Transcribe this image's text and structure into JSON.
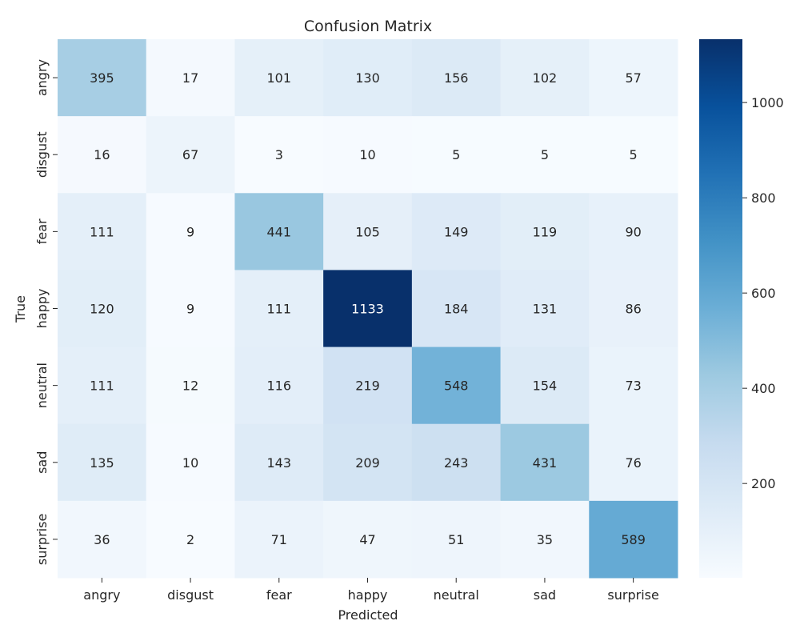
{
  "chart_data": {
    "type": "heatmap",
    "title": "Confusion Matrix",
    "xlabel": "Predicted",
    "ylabel": "True",
    "x_categories": [
      "angry",
      "disgust",
      "fear",
      "happy",
      "neutral",
      "sad",
      "surprise"
    ],
    "y_categories": [
      "angry",
      "disgust",
      "fear",
      "happy",
      "neutral",
      "sad",
      "surprise"
    ],
    "values": [
      [
        395,
        17,
        101,
        130,
        156,
        102,
        57
      ],
      [
        16,
        67,
        3,
        10,
        5,
        5,
        5
      ],
      [
        111,
        9,
        441,
        105,
        149,
        119,
        90
      ],
      [
        120,
        9,
        111,
        1133,
        184,
        131,
        86
      ],
      [
        111,
        12,
        116,
        219,
        548,
        154,
        73
      ],
      [
        135,
        10,
        143,
        209,
        243,
        431,
        76
      ],
      [
        36,
        2,
        71,
        47,
        51,
        35,
        589
      ]
    ],
    "colormap": "Blues",
    "color_range": [
      2,
      1133
    ],
    "colorbar_ticks": [
      200,
      400,
      600,
      800,
      1000
    ],
    "legend": "colorbar-right",
    "grid": false
  }
}
